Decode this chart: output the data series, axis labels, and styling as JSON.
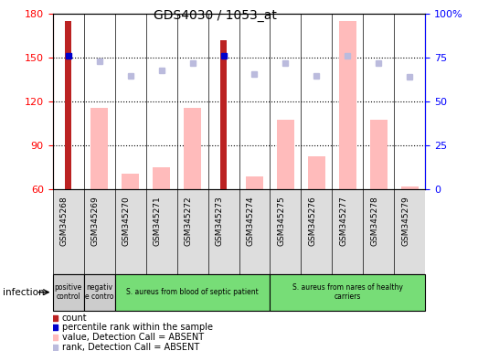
{
  "title": "GDS4030 / 1053_at",
  "samples": [
    "GSM345268",
    "GSM345269",
    "GSM345270",
    "GSM345271",
    "GSM345272",
    "GSM345273",
    "GSM345274",
    "GSM345275",
    "GSM345276",
    "GSM345277",
    "GSM345278",
    "GSM345279"
  ],
  "count_values": [
    175,
    null,
    null,
    null,
    null,
    162,
    null,
    null,
    null,
    null,
    null,
    null
  ],
  "percentile_rank": [
    76,
    null,
    null,
    null,
    null,
    76,
    null,
    null,
    null,
    null,
    null,
    null
  ],
  "absent_value": [
    null,
    116,
    71,
    75,
    116,
    null,
    69,
    108,
    83,
    175,
    108,
    62
  ],
  "absent_rank": [
    null,
    73,
    65,
    68,
    72,
    null,
    66,
    72,
    65,
    76,
    72,
    64
  ],
  "ylim_left": [
    60,
    180
  ],
  "ylim_right": [
    0,
    100
  ],
  "yticks_left": [
    60,
    90,
    120,
    150,
    180
  ],
  "yticks_right": [
    0,
    25,
    50,
    75,
    100
  ],
  "ytick_labels_right": [
    "0",
    "25",
    "50",
    "75",
    "100%"
  ],
  "color_count": "#bb2222",
  "color_absent_value": "#ffbbbb",
  "color_percentile": "#0000cc",
  "color_absent_rank": "#bbbbdd",
  "groups": [
    {
      "label": "positive\ncontrol",
      "start": 0,
      "end": 1,
      "color": "#cccccc"
    },
    {
      "label": "negativ\ne contro",
      "start": 1,
      "end": 2,
      "color": "#cccccc"
    },
    {
      "label": "S. aureus from blood of septic patient",
      "start": 2,
      "end": 7,
      "color": "#77dd77"
    },
    {
      "label": "S. aureus from nares of healthy\ncarriers",
      "start": 7,
      "end": 12,
      "color": "#77dd77"
    }
  ],
  "infection_label": "infection",
  "legend_items": [
    {
      "color": "#bb2222",
      "label": "count"
    },
    {
      "color": "#0000cc",
      "label": "percentile rank within the sample"
    },
    {
      "color": "#ffbbbb",
      "label": "value, Detection Call = ABSENT"
    },
    {
      "color": "#bbbbdd",
      "label": "rank, Detection Call = ABSENT"
    }
  ]
}
